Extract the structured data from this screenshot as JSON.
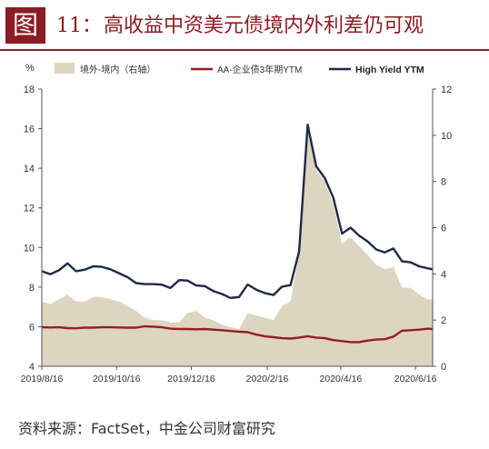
{
  "header": {
    "badge": "图",
    "number": "11：",
    "title": "高收益中资美元债境内外利差仍可观"
  },
  "source": "资料来源：FactSet，中金公司财富研究",
  "colors": {
    "accent": "#8c1c24",
    "area": "#dcd5c0",
    "aa_line": "#9b1b22",
    "hy_line": "#1e2a44"
  },
  "chart_data": {
    "type": "line",
    "left_axis_unit": "%",
    "x_tick_labels": [
      "2019/8/16",
      "2019/10/16",
      "2019/12/16",
      "2020/2/16",
      "2020/4/16",
      "2020/6/16"
    ],
    "x_range": [
      "2019/8/16",
      "2020/6/30"
    ],
    "ylim_left": [
      4,
      18
    ],
    "yticks_left": [
      4,
      6,
      8,
      10,
      12,
      14,
      16,
      18
    ],
    "ylim_right": [
      0,
      12
    ],
    "yticks_right": [
      0,
      2,
      4,
      6,
      8,
      10,
      12
    ],
    "legend_position": "top",
    "grid": false,
    "series": [
      {
        "name": "境外-境内（右轴）",
        "type": "area",
        "axis": "right",
        "points": [
          [
            "2019/8/16",
            2.8
          ],
          [
            "2019/8/23",
            2.7
          ],
          [
            "2019/8/30",
            2.9
          ],
          [
            "2019/9/6",
            3.1
          ],
          [
            "2019/9/13",
            2.8
          ],
          [
            "2019/9/20",
            2.8
          ],
          [
            "2019/9/27",
            3.0
          ],
          [
            "2019/10/4",
            3.0
          ],
          [
            "2019/10/11",
            2.9
          ],
          [
            "2019/10/18",
            2.8
          ],
          [
            "2019/10/25",
            2.6
          ],
          [
            "2019/11/1",
            2.4
          ],
          [
            "2019/11/8",
            2.1
          ],
          [
            "2019/11/15",
            2.0
          ],
          [
            "2019/11/22",
            2.0
          ],
          [
            "2019/11/29",
            1.9
          ],
          [
            "2019/12/6",
            1.9
          ],
          [
            "2019/12/13",
            2.3
          ],
          [
            "2019/12/20",
            2.4
          ],
          [
            "2019/12/27",
            2.1
          ],
          [
            "2020/1/3",
            2.0
          ],
          [
            "2020/1/10",
            1.8
          ],
          [
            "2020/1/17",
            1.7
          ],
          [
            "2020/1/24",
            1.6
          ],
          [
            "2020/1/31",
            2.3
          ],
          [
            "2020/2/7",
            2.2
          ],
          [
            "2020/2/14",
            2.1
          ],
          [
            "2020/2/21",
            2.0
          ],
          [
            "2020/2/28",
            2.6
          ],
          [
            "2020/3/6",
            2.8
          ],
          [
            "2020/3/13",
            4.9
          ],
          [
            "2020/3/20",
            10.3
          ],
          [
            "2020/3/27",
            8.5
          ],
          [
            "2020/4/3",
            8.0
          ],
          [
            "2020/4/10",
            7.0
          ],
          [
            "2020/4/17",
            5.3
          ],
          [
            "2020/4/24",
            5.6
          ],
          [
            "2020/5/1",
            5.2
          ],
          [
            "2020/5/8",
            4.8
          ],
          [
            "2020/5/15",
            4.4
          ],
          [
            "2020/5/22",
            4.2
          ],
          [
            "2020/5/29",
            4.3
          ],
          [
            "2020/6/5",
            3.4
          ],
          [
            "2020/6/12",
            3.4
          ],
          [
            "2020/6/19",
            3.1
          ],
          [
            "2020/6/26",
            2.9
          ],
          [
            "2020/6/30",
            2.9
          ]
        ]
      },
      {
        "name": "AA-企业债3年期YTM",
        "type": "line",
        "axis": "left",
        "points": [
          [
            "2019/8/16",
            5.98
          ],
          [
            "2019/8/23",
            5.96
          ],
          [
            "2019/8/30",
            5.97
          ],
          [
            "2019/9/6",
            5.93
          ],
          [
            "2019/9/13",
            5.92
          ],
          [
            "2019/9/20",
            5.95
          ],
          [
            "2019/9/27",
            5.95
          ],
          [
            "2019/10/4",
            5.97
          ],
          [
            "2019/10/11",
            5.97
          ],
          [
            "2019/10/18",
            5.96
          ],
          [
            "2019/10/25",
            5.95
          ],
          [
            "2019/11/1",
            5.95
          ],
          [
            "2019/11/8",
            6.02
          ],
          [
            "2019/11/15",
            6.0
          ],
          [
            "2019/11/22",
            5.97
          ],
          [
            "2019/11/29",
            5.9
          ],
          [
            "2019/12/6",
            5.88
          ],
          [
            "2019/12/13",
            5.88
          ],
          [
            "2019/12/20",
            5.87
          ],
          [
            "2019/12/27",
            5.88
          ],
          [
            "2020/1/3",
            5.85
          ],
          [
            "2020/1/10",
            5.82
          ],
          [
            "2020/1/17",
            5.78
          ],
          [
            "2020/1/24",
            5.75
          ],
          [
            "2020/1/31",
            5.72
          ],
          [
            "2020/2/7",
            5.6
          ],
          [
            "2020/2/14",
            5.52
          ],
          [
            "2020/2/21",
            5.47
          ],
          [
            "2020/2/28",
            5.42
          ],
          [
            "2020/3/6",
            5.4
          ],
          [
            "2020/3/13",
            5.45
          ],
          [
            "2020/3/20",
            5.52
          ],
          [
            "2020/3/27",
            5.45
          ],
          [
            "2020/4/3",
            5.42
          ],
          [
            "2020/4/10",
            5.32
          ],
          [
            "2020/4/17",
            5.27
          ],
          [
            "2020/4/24",
            5.22
          ],
          [
            "2020/5/1",
            5.22
          ],
          [
            "2020/5/8",
            5.3
          ],
          [
            "2020/5/15",
            5.35
          ],
          [
            "2020/5/22",
            5.37
          ],
          [
            "2020/5/29",
            5.5
          ],
          [
            "2020/6/5",
            5.8
          ],
          [
            "2020/6/12",
            5.82
          ],
          [
            "2020/6/19",
            5.85
          ],
          [
            "2020/6/26",
            5.9
          ],
          [
            "2020/6/30",
            5.88
          ]
        ]
      },
      {
        "name": "High Yield YTM",
        "type": "line",
        "axis": "left",
        "points": [
          [
            "2019/8/16",
            8.8
          ],
          [
            "2019/8/23",
            8.65
          ],
          [
            "2019/8/30",
            8.85
          ],
          [
            "2019/9/6",
            9.2
          ],
          [
            "2019/9/13",
            8.8
          ],
          [
            "2019/9/20",
            8.88
          ],
          [
            "2019/9/27",
            9.05
          ],
          [
            "2019/10/4",
            9.02
          ],
          [
            "2019/10/11",
            8.9
          ],
          [
            "2019/10/18",
            8.7
          ],
          [
            "2019/10/25",
            8.5
          ],
          [
            "2019/11/1",
            8.2
          ],
          [
            "2019/11/8",
            8.15
          ],
          [
            "2019/11/15",
            8.15
          ],
          [
            "2019/11/22",
            8.12
          ],
          [
            "2019/11/29",
            7.95
          ],
          [
            "2019/12/6",
            8.35
          ],
          [
            "2019/12/13",
            8.33
          ],
          [
            "2019/12/20",
            8.08
          ],
          [
            "2019/12/27",
            8.05
          ],
          [
            "2020/1/3",
            7.8
          ],
          [
            "2020/1/10",
            7.65
          ],
          [
            "2020/1/17",
            7.45
          ],
          [
            "2020/1/24",
            7.5
          ],
          [
            "2020/1/31",
            8.13
          ],
          [
            "2020/2/7",
            7.87
          ],
          [
            "2020/2/14",
            7.7
          ],
          [
            "2020/2/21",
            7.6
          ],
          [
            "2020/2/28",
            8.02
          ],
          [
            "2020/3/6",
            8.1
          ],
          [
            "2020/3/13",
            9.8
          ],
          [
            "2020/3/20",
            16.2
          ],
          [
            "2020/3/27",
            14.1
          ],
          [
            "2020/4/3",
            13.5
          ],
          [
            "2020/4/10",
            12.5
          ],
          [
            "2020/4/17",
            10.7
          ],
          [
            "2020/4/24",
            11.0
          ],
          [
            "2020/5/1",
            10.6
          ],
          [
            "2020/5/8",
            10.3
          ],
          [
            "2020/5/15",
            9.9
          ],
          [
            "2020/5/22",
            9.75
          ],
          [
            "2020/5/29",
            9.95
          ],
          [
            "2020/6/5",
            9.3
          ],
          [
            "2020/6/12",
            9.25
          ],
          [
            "2020/6/19",
            9.05
          ],
          [
            "2020/6/26",
            8.95
          ],
          [
            "2020/6/30",
            8.9
          ]
        ]
      }
    ]
  }
}
